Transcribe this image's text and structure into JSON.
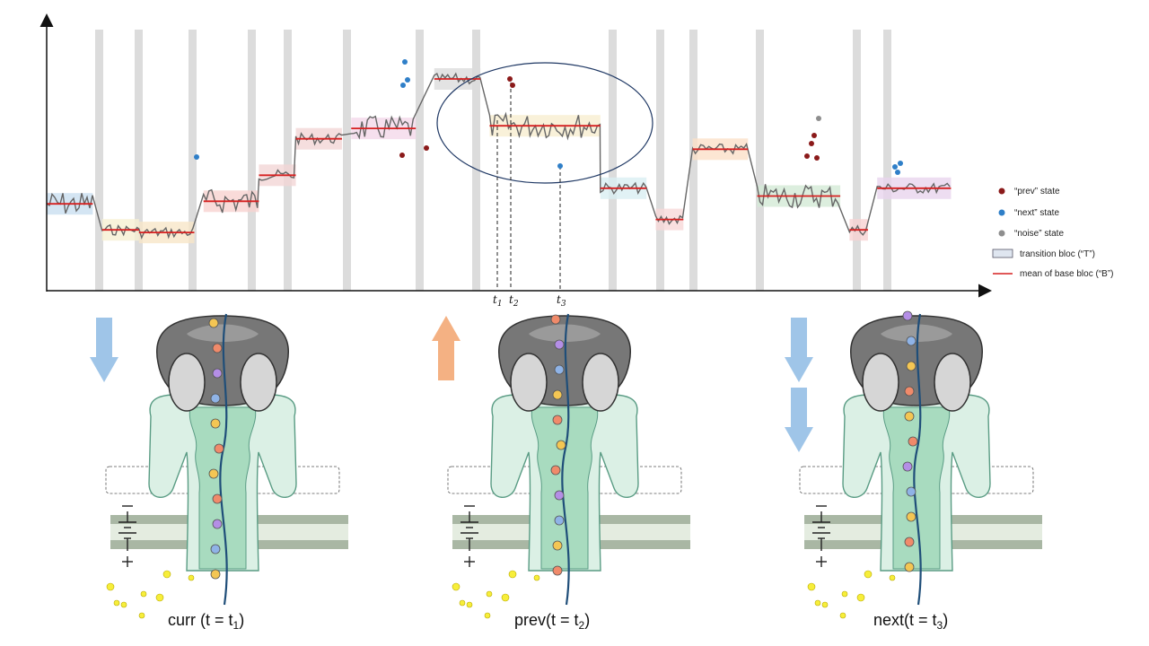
{
  "legend": {
    "prev_label": "“prev” state",
    "next_label": "“next” state",
    "noise_label": "“noise” state",
    "transition_label": "transition bloc (“T”)",
    "mean_label": "mean of base bloc (“B”)"
  },
  "time_marks": {
    "t1_main": "t",
    "t1_sub": "1",
    "t2_main": "t",
    "t2_sub": "2",
    "t3_main": "t",
    "t3_sub": "3"
  },
  "captions": {
    "curr": "curr (t = t",
    "curr_sub": "1",
    "prev": "prev(t = t",
    "prev_sub": "2",
    "next": "next(t = t",
    "next_sub": "3",
    "close": ")"
  },
  "colors": {
    "prev_state": "#8b1a1a",
    "next_state": "#2f7fc8",
    "noise_state": "#8e8e8e",
    "mean_line": "#d62020",
    "transition_band": "#dcdcdc",
    "arrow_down": "#9fc5e8",
    "arrow_up": "#f4b183",
    "pore_green": "#cfe8dc",
    "pore_outline": "#5a9c84",
    "motor_gray": "#7a7a7a",
    "membrane": "#a9b7a4",
    "strand": "#1f4e79"
  },
  "chart_data": {
    "type": "line",
    "title": "",
    "xlabel": "",
    "ylabel": "",
    "grid": false,
    "base_bloc_levels": [
      {
        "start": 0.0,
        "end": 0.05,
        "level": 0.32
      },
      {
        "start": 0.06,
        "end": 0.1,
        "level": 0.22
      },
      {
        "start": 0.1,
        "end": 0.16,
        "level": 0.21
      },
      {
        "start": 0.17,
        "end": 0.23,
        "level": 0.33
      },
      {
        "start": 0.23,
        "end": 0.27,
        "level": 0.43
      },
      {
        "start": 0.27,
        "end": 0.32,
        "level": 0.57
      },
      {
        "start": 0.33,
        "end": 0.4,
        "level": 0.61
      },
      {
        "start": 0.42,
        "end": 0.47,
        "level": 0.8
      },
      {
        "start": 0.48,
        "end": 0.6,
        "level": 0.62
      },
      {
        "start": 0.6,
        "end": 0.65,
        "level": 0.38
      },
      {
        "start": 0.66,
        "end": 0.69,
        "level": 0.26
      },
      {
        "start": 0.7,
        "end": 0.76,
        "level": 0.53
      },
      {
        "start": 0.77,
        "end": 0.86,
        "level": 0.35
      },
      {
        "start": 0.87,
        "end": 0.89,
        "level": 0.22
      },
      {
        "start": 0.9,
        "end": 0.98,
        "level": 0.38
      }
    ]
  }
}
